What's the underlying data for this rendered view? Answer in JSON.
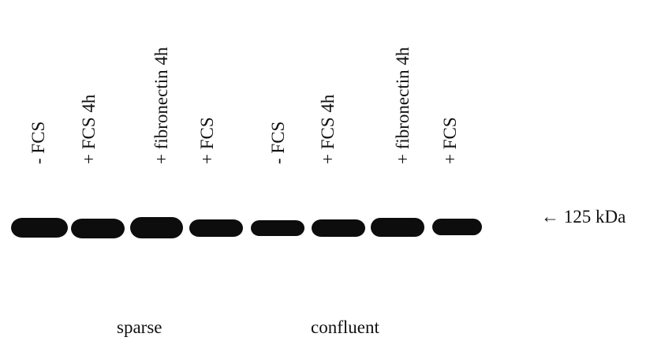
{
  "lanes": [
    "- FCS",
    "+ FCS 4h",
    "+ fibronectin 4h",
    "+ FCS",
    "- FCS",
    "+ FCS 4h",
    "+ fibronectin 4h",
    "+ FCS"
  ],
  "marker": "← 125 kDa",
  "groups": [
    "sparse",
    "confluent"
  ]
}
